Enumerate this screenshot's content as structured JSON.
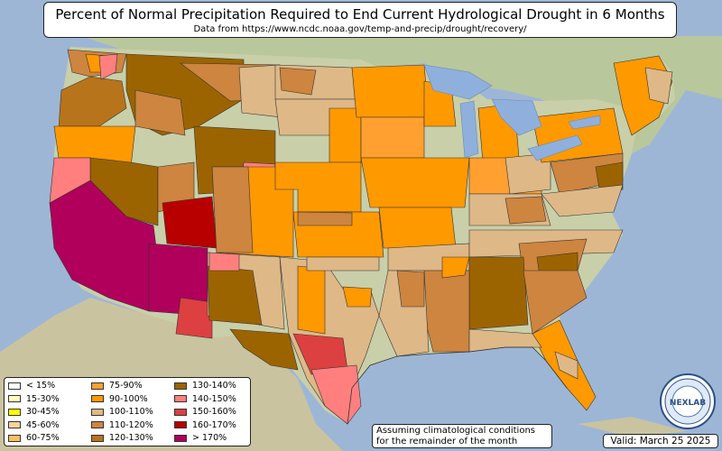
{
  "title": "Percent of Normal Precipitation Required to End Current Hydrological Drought in 6 Months",
  "subtitle": "Data from https://www.ncdc.noaa.gov/temp-and-precip/drought/recovery/",
  "legend": [
    {
      "label": "< 15%",
      "color": "#ffffff"
    },
    {
      "label": "15-30%",
      "color": "#ffffc0"
    },
    {
      "label": "30-45%",
      "color": "#ffff00"
    },
    {
      "label": "45-60%",
      "color": "#ffd39b"
    },
    {
      "label": "60-75%",
      "color": "#ffbf60"
    },
    {
      "label": "75-90%",
      "color": "#ffa030"
    },
    {
      "label": "90-100%",
      "color": "#ff9900"
    },
    {
      "label": "100-110%",
      "color": "#deb887"
    },
    {
      "label": "110-120%",
      "color": "#cd853f"
    },
    {
      "label": "120-130%",
      "color": "#b8741a"
    },
    {
      "label": "130-140%",
      "color": "#9c6400"
    },
    {
      "label": "140-150%",
      "color": "#ff7f7f"
    },
    {
      "label": "150-160%",
      "color": "#dd4040"
    },
    {
      "label": "160-170%",
      "color": "#b80000"
    },
    {
      "label": "> 170%",
      "color": "#b0005c"
    }
  ],
  "note": {
    "line1": "Assuming climatological conditions",
    "line2": "for the remainder of the month"
  },
  "valid": "Valid: March 25 2025",
  "logo": {
    "icon": "nex-lab-logo-icon",
    "text": "NEXLAB"
  },
  "colors": {
    "ocean": "#9db6d6",
    "land": "#c9cfa8",
    "lake": "#8fb0dc"
  }
}
